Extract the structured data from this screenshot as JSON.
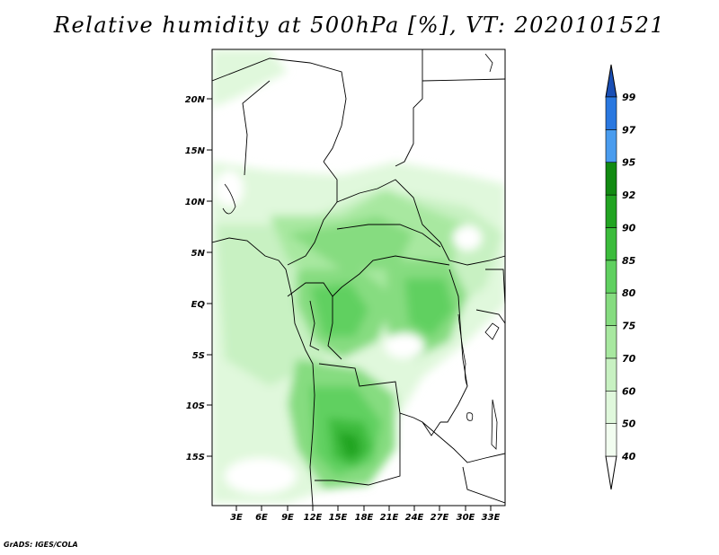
{
  "title": "Relative humidity at 500hPa [%], VT: 2020101521",
  "credit": "GrADS: IGES/COLA",
  "map": {
    "lon_labels": [
      "3E",
      "6E",
      "9E",
      "12E",
      "15E",
      "18E",
      "21E",
      "24E",
      "27E",
      "30E",
      "33E"
    ],
    "lat_labels": [
      "20N",
      "15N",
      "10N",
      "5N",
      "EQ",
      "5S",
      "10S",
      "15S"
    ]
  },
  "colorbar": {
    "levels": [
      {
        "label": "40",
        "color": "#f2fdf0"
      },
      {
        "label": "50",
        "color": "#e0f8dc"
      },
      {
        "label": "60",
        "color": "#c8f1c2"
      },
      {
        "label": "70",
        "color": "#a8e8a0"
      },
      {
        "label": "75",
        "color": "#86dc80"
      },
      {
        "label": "80",
        "color": "#60d060"
      },
      {
        "label": "85",
        "color": "#3cbc3c"
      },
      {
        "label": "90",
        "color": "#22a422"
      },
      {
        "label": "92",
        "color": "#128a12"
      },
      {
        "label": "95",
        "color": "#4a9cee"
      },
      {
        "label": "97",
        "color": "#2a78e0"
      },
      {
        "label": "99",
        "color": "#1850c0"
      }
    ],
    "low_color": "#ffffff",
    "high_color": "#1a4fb5"
  }
}
